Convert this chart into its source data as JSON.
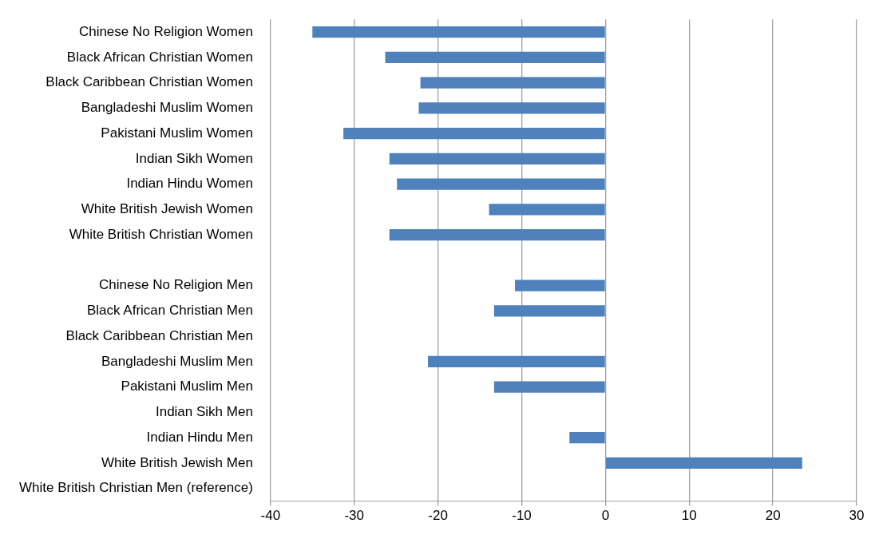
{
  "chart_data": {
    "type": "bar",
    "orientation": "horizontal",
    "categories": [
      "Chinese No Religion Women",
      "Black African Christian Women",
      "Black Caribbean Christian Women",
      "Bangladeshi Muslim Women",
      "Pakistani Muslim Women",
      "Indian Sikh Women",
      "Indian Hindu Women",
      "White British Jewish Women",
      "White British Christian Women",
      null,
      "Chinese No Religion Men",
      "Black African Christian Men",
      "Black Caribbean Christian Men",
      "Bangladeshi Muslim Men",
      "Pakistani Muslim Men",
      "Indian Sikh Men",
      "Indian Hindu Men",
      "White British Jewish Men",
      "White British Christian Men (reference)"
    ],
    "values": [
      -35.0,
      -26.3,
      -22.1,
      -22.3,
      -31.3,
      -25.8,
      -24.9,
      -13.9,
      -25.8,
      null,
      -10.8,
      -13.3,
      null,
      -21.2,
      -13.3,
      null,
      -4.3,
      23.5,
      null
    ],
    "color": "#4f81bd",
    "xlim": [
      -40,
      30
    ],
    "xticks": [
      -40,
      -30,
      -20,
      -10,
      0,
      10,
      20,
      30
    ],
    "grid": "x",
    "legend": false
  }
}
